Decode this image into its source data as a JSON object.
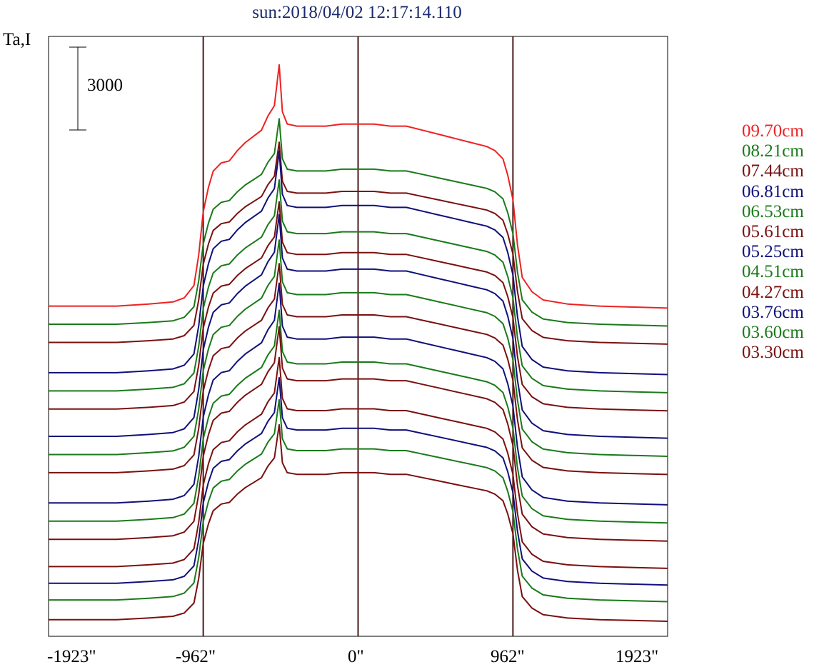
{
  "chart_data": {
    "type": "line",
    "title": "sun:2018/04/02 12:17:14.110",
    "ylabel": "Ta,I",
    "scale_bar": {
      "label": "3000",
      "value": 3000
    },
    "x_ticks": [
      "-1923\"",
      "-962\"",
      "0\"",
      "962\"",
      "1923\""
    ],
    "x_tick_values": [
      -1923,
      -962,
      0,
      962,
      1923
    ],
    "xlim": [
      -1923,
      1923
    ],
    "vertical_lines": [
      -962,
      0,
      962
    ],
    "legend": [
      {
        "label": "09.70cm",
        "color": "#ee2222"
      },
      {
        "label": "08.21cm",
        "color": "#1a7a1a"
      },
      {
        "label": "07.44cm",
        "color": "#7a1010"
      },
      {
        "label": "06.81cm",
        "color": "#10107a"
      },
      {
        "label": "06.53cm",
        "color": "#1a7a1a"
      },
      {
        "label": "05.61cm",
        "color": "#7a1010"
      },
      {
        "label": "05.25cm",
        "color": "#10107a"
      },
      {
        "label": "04.51cm",
        "color": "#1a7a1a"
      },
      {
        "label": "04.27cm",
        "color": "#7a1010"
      },
      {
        "label": "03.76cm",
        "color": "#10107a"
      },
      {
        "label": "03.60cm",
        "color": "#1a7a1a"
      },
      {
        "label": "03.30cm",
        "color": "#7a1010"
      }
    ],
    "profile": {
      "x": [
        -1923,
        -1500,
        -1300,
        -1150,
        -1080,
        -1020,
        -990,
        -962,
        -930,
        -900,
        -850,
        -800,
        -750,
        -700,
        -650,
        -600,
        -560,
        -520,
        -490,
        -470,
        -440,
        -380,
        -300,
        -200,
        -100,
        -50,
        0,
        50,
        100,
        200,
        300,
        400,
        500,
        600,
        700,
        800,
        850,
        900,
        930,
        962,
        990,
        1020,
        1080,
        1150,
        1300,
        1500,
        1923
      ],
      "y_frac": [
        0.0,
        0.0,
        0.01,
        0.02,
        0.04,
        0.1,
        0.25,
        0.46,
        0.58,
        0.66,
        0.7,
        0.71,
        0.76,
        0.8,
        0.83,
        0.86,
        0.93,
        0.98,
        1.18,
        0.95,
        0.89,
        0.88,
        0.88,
        0.88,
        0.89,
        0.89,
        0.89,
        0.89,
        0.89,
        0.88,
        0.88,
        0.86,
        0.84,
        0.82,
        0.8,
        0.78,
        0.76,
        0.72,
        0.64,
        0.52,
        0.3,
        0.14,
        0.07,
        0.03,
        0.01,
        0.0,
        -0.01
      ]
    },
    "series": [
      {
        "name": "09.70cm",
        "color": "#ee2222",
        "baseline": 26200,
        "amplitude": 13500
      },
      {
        "name": "08.21cm",
        "color": "#1a7a1a",
        "baseline": 25000,
        "amplitude": 11500
      },
      {
        "name": "07.44cm",
        "color": "#7a1010",
        "baseline": 23800,
        "amplitude": 11200
      },
      {
        "name": "06.81cm",
        "color": "#10107a",
        "baseline": 21800,
        "amplitude": 12400
      },
      {
        "name": "06.53cm",
        "color": "#1a7a1a",
        "baseline": 20600,
        "amplitude": 11800
      },
      {
        "name": "05.61cm",
        "color": "#7a1010",
        "baseline": 19400,
        "amplitude": 11600
      },
      {
        "name": "05.25cm",
        "color": "#10107a",
        "baseline": 17600,
        "amplitude": 12400
      },
      {
        "name": "04.51cm",
        "color": "#1a7a1a",
        "baseline": 16400,
        "amplitude": 12000
      },
      {
        "name": "04.27cm",
        "color": "#7a1010",
        "baseline": 15200,
        "amplitude": 11700
      },
      {
        "name": "03.76cm",
        "color": "#10107a",
        "baseline": 13200,
        "amplitude": 12300
      },
      {
        "name": "03.60cm",
        "color": "#1a7a1a",
        "baseline": 12000,
        "amplitude": 11800
      },
      {
        "name": "03.30cm",
        "color": "#7a1010",
        "baseline": 10800,
        "amplitude": 11900
      },
      {
        "color": "#7a1010",
        "baseline": 9000,
        "amplitude": 11700
      },
      {
        "color": "#10107a",
        "baseline": 7900,
        "amplitude": 11500
      },
      {
        "color": "#1a7a1a",
        "baseline": 6800,
        "amplitude": 11200
      },
      {
        "color": "#7a1010",
        "baseline": 5500,
        "amplitude": 10900
      }
    ],
    "ylim": [
      4400,
      44000
    ],
    "grid": false
  }
}
